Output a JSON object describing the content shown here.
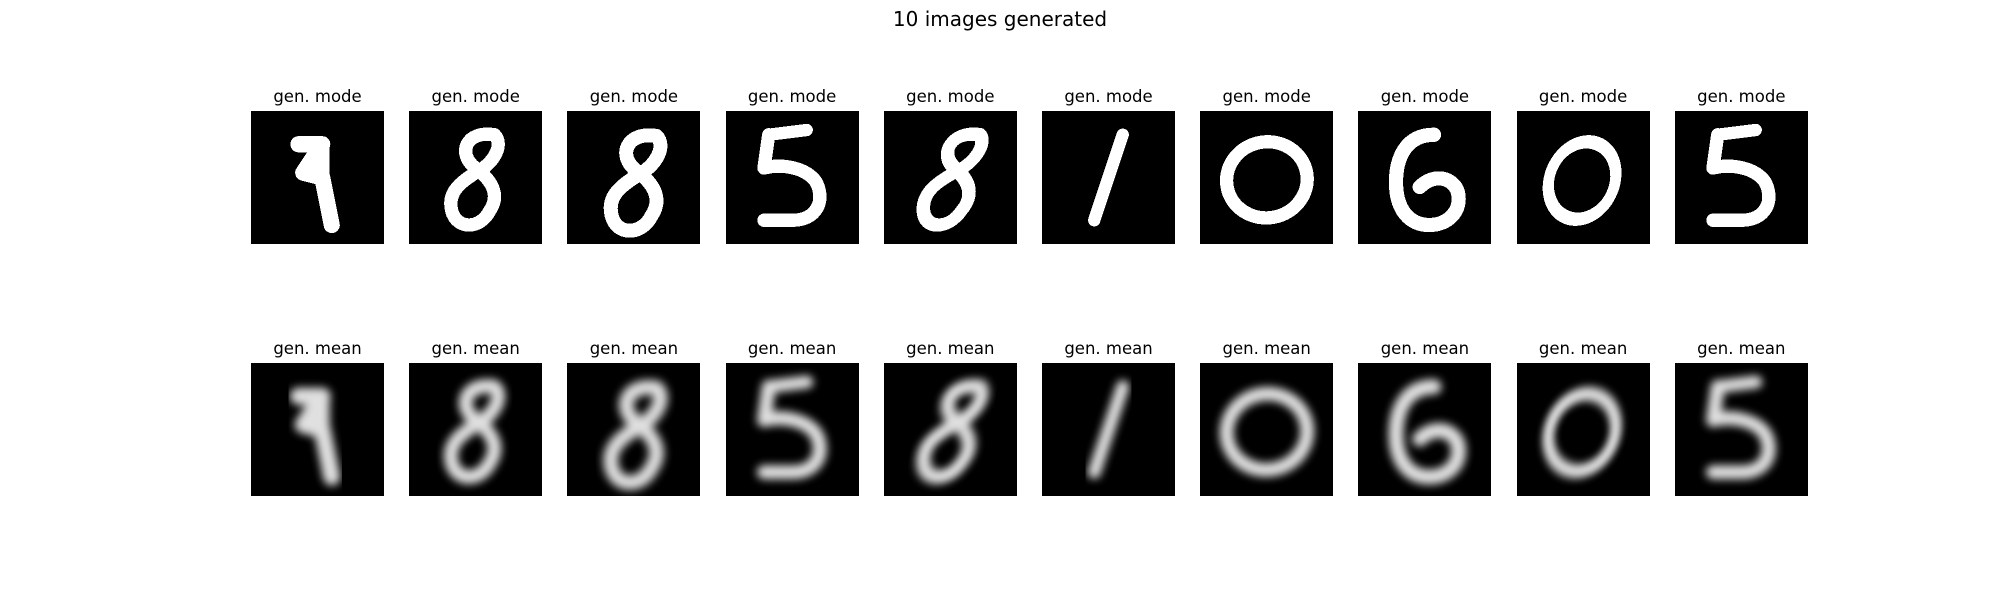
{
  "figure": {
    "title": "10 images generated"
  },
  "rows": [
    {
      "subtitle": "gen. mode",
      "render": "binary",
      "digits": [
        "4",
        "8",
        "8",
        "5",
        "8",
        "1",
        "0",
        "6",
        "0",
        "5"
      ]
    },
    {
      "subtitle": "gen. mean",
      "render": "blurred-grayscale",
      "digits": [
        "4",
        "8",
        "8",
        "5",
        "8",
        "1",
        "0",
        "6",
        "0",
        "5"
      ]
    }
  ],
  "colors": {
    "background": "#000000",
    "stroke": "#ffffff"
  }
}
